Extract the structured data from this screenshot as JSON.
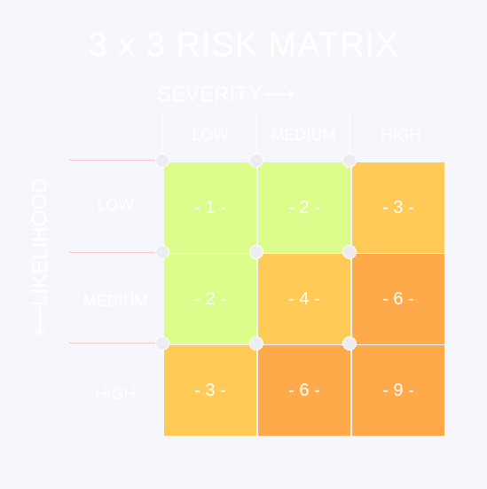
{
  "title": "3 x 3 RISK MATRIX",
  "axes": {
    "severity_label": "SEVERITY",
    "severity_arrow": "⟶",
    "likelihood_label": "LIKELIHOOD",
    "likelihood_arrow": "⟵"
  },
  "severity_levels": [
    "LOW",
    "MEDIUM",
    "HIGH"
  ],
  "likelihood_levels": [
    "LOW",
    "MEDIUM",
    "HIGH"
  ],
  "matrix": [
    [
      {
        "text": "- 1 -",
        "color": "#dcfc8c"
      },
      {
        "text": "- 2 -",
        "color": "#dcfc8c"
      },
      {
        "text": "- 3 -",
        "color": "#ffcb56"
      }
    ],
    [
      {
        "text": "- 2 -",
        "color": "#dcfc8c"
      },
      {
        "text": "- 4 -",
        "color": "#ffcb56"
      },
      {
        "text": "- 6 -",
        "color": "#ffaa4a"
      }
    ],
    [
      {
        "text": "- 3 -",
        "color": "#ffcb56"
      },
      {
        "text": "- 6 -",
        "color": "#ffaa4a"
      },
      {
        "text": "- 9 -",
        "color": "#ffaa4a"
      }
    ]
  ]
}
